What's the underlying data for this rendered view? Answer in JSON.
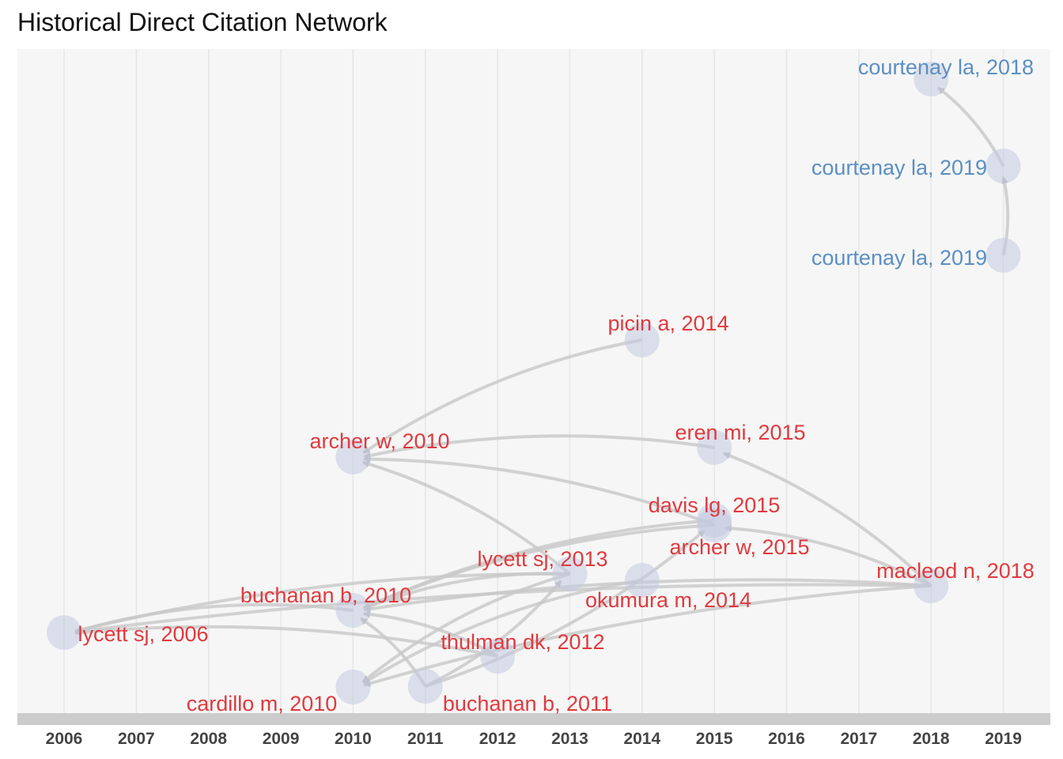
{
  "title": "Historical Direct Citation Network",
  "colors": {
    "background": "#f6f6f6",
    "grid": "#e6e6e6",
    "axis_band": "#cccccc",
    "node_fill": "#c3cae0",
    "edge": "#c8c8c8",
    "cluster_red": "#e03a3e",
    "cluster_blue": "#5b8fc4"
  },
  "chart_data": {
    "type": "network",
    "years": [
      "2006",
      "2007",
      "2008",
      "2009",
      "2010",
      "2011",
      "2012",
      "2013",
      "2014",
      "2015",
      "2016",
      "2017",
      "2018",
      "2019"
    ],
    "nodes": [
      {
        "id": "courtenay2018",
        "label": "courtenay la, 2018",
        "year": 2018,
        "cluster": "blue"
      },
      {
        "id": "courtenay2019a",
        "label": "courtenay la, 2019",
        "year": 2019,
        "cluster": "blue"
      },
      {
        "id": "courtenay2019b",
        "label": "courtenay la, 2019",
        "year": 2019,
        "cluster": "blue"
      },
      {
        "id": "picin2014",
        "label": "picin a, 2014",
        "year": 2014,
        "cluster": "red"
      },
      {
        "id": "archer2010",
        "label": "archer w, 2010",
        "year": 2010,
        "cluster": "red"
      },
      {
        "id": "eren2015",
        "label": "eren mi, 2015",
        "year": 2015,
        "cluster": "red"
      },
      {
        "id": "davis2015",
        "label": "davis lg, 2015",
        "year": 2015,
        "cluster": "red"
      },
      {
        "id": "archer2015",
        "label": "archer w, 2015",
        "year": 2015,
        "cluster": "red"
      },
      {
        "id": "macleod2018",
        "label": "macleod n, 2018",
        "year": 2018,
        "cluster": "red"
      },
      {
        "id": "lycett2013",
        "label": "lycett sj, 2013",
        "year": 2013,
        "cluster": "red"
      },
      {
        "id": "okumura2014",
        "label": "okumura m, 2014",
        "year": 2014,
        "cluster": "red"
      },
      {
        "id": "buchanan2010",
        "label": "buchanan b, 2010",
        "year": 2010,
        "cluster": "red"
      },
      {
        "id": "lycett2006",
        "label": "lycett sj, 2006",
        "year": 2006,
        "cluster": "red"
      },
      {
        "id": "thulman2012",
        "label": "thulman dk, 2012",
        "year": 2012,
        "cluster": "red"
      },
      {
        "id": "cardillo2010",
        "label": "cardillo m, 2010",
        "year": 2010,
        "cluster": "red"
      },
      {
        "id": "buchanan2011",
        "label": "buchanan b, 2011",
        "year": 2011,
        "cluster": "red"
      }
    ],
    "edges": [
      {
        "from": "courtenay2019a",
        "to": "courtenay2018"
      },
      {
        "from": "courtenay2019b",
        "to": "courtenay2019a"
      },
      {
        "from": "picin2014",
        "to": "archer2010"
      },
      {
        "from": "eren2015",
        "to": "archer2010"
      },
      {
        "from": "archer2015",
        "to": "archer2010"
      },
      {
        "from": "lycett2013",
        "to": "archer2010"
      },
      {
        "from": "macleod2018",
        "to": "eren2015"
      },
      {
        "from": "macleod2018",
        "to": "archer2015"
      },
      {
        "from": "macleod2018",
        "to": "buchanan2010"
      },
      {
        "from": "macleod2018",
        "to": "cardillo2010"
      },
      {
        "from": "macleod2018",
        "to": "lycett2006"
      },
      {
        "from": "lycett2013",
        "to": "lycett2006"
      },
      {
        "from": "lycett2013",
        "to": "buchanan2010"
      },
      {
        "from": "lycett2013",
        "to": "cardillo2010"
      },
      {
        "from": "archer2015",
        "to": "buchanan2010"
      },
      {
        "from": "davis2015",
        "to": "buchanan2010"
      },
      {
        "from": "okumura2014",
        "to": "cardillo2010"
      },
      {
        "from": "thulman2012",
        "to": "buchanan2010"
      },
      {
        "from": "thulman2012",
        "to": "lycett2006"
      },
      {
        "from": "buchanan2011",
        "to": "buchanan2010"
      },
      {
        "from": "buchanan2011",
        "to": "archer2015"
      },
      {
        "from": "buchanan2011",
        "to": "lycett2013"
      },
      {
        "from": "buchanan2010",
        "to": "lycett2006"
      }
    ]
  }
}
